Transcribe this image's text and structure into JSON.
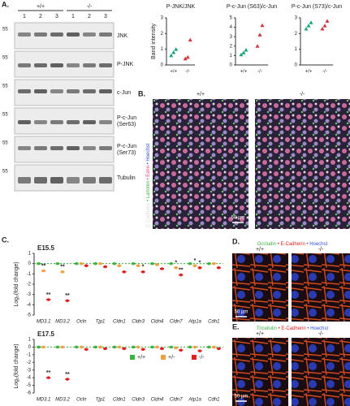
{
  "panel_a": {
    "label": "A.",
    "genotypes": [
      "+/+",
      "-/-"
    ],
    "lanes": [
      "1",
      "2",
      "3",
      "1",
      "2",
      "3"
    ],
    "marker": "55",
    "blots": [
      [
        "JNK"
      ],
      [
        "P-JNK"
      ],
      [
        "c-Jun"
      ],
      [
        "P-c-Jun",
        "(Ser63)"
      ],
      [
        "P-c-Jun",
        "(Ser73)"
      ],
      [
        "Tubulin"
      ]
    ]
  },
  "panel_b": {
    "label": "B.",
    "genotypes": [
      "+/+",
      "-/-"
    ],
    "stain": [
      "E-Cadherin",
      "Laminin",
      "Ezrin",
      "Hoechst"
    ],
    "scale": "50 µm"
  },
  "panel_c": {
    "label": "C."
  },
  "panel_d": {
    "label": "D.",
    "stain": [
      "Occludin",
      "E-Cadherin",
      "Hoechst"
    ],
    "genotypes": [
      "+/+",
      "-/-"
    ],
    "scale": "50 µm"
  },
  "panel_e": {
    "label": "E.",
    "stain": [
      "Tricellulin",
      "E-Cadherin",
      "Hoechst"
    ],
    "genotypes": [
      "+/+",
      "-/-"
    ],
    "scale": "50 µm"
  },
  "chart_data": [
    {
      "type": "dot",
      "title": "P-JNK/JNK",
      "ylabel": "Band intensity",
      "categories": [
        "+/+",
        "-/-"
      ],
      "colors": [
        "#1aa37a",
        "#d1323a"
      ],
      "values": [
        [
          0.6,
          0.8,
          1.0
        ],
        [
          0.4,
          0.5,
          1.6
        ]
      ],
      "ylim": [
        0,
        3
      ],
      "yticks": [
        0,
        1,
        2,
        3
      ]
    },
    {
      "type": "dot",
      "title": "P-c-Jun (S63)/c-Jun",
      "categories": [
        "+/+",
        "-/-"
      ],
      "colors": [
        "#1aa37a",
        "#d1323a"
      ],
      "values": [
        [
          1.1,
          1.3,
          1.6
        ],
        [
          2.0,
          3.2,
          4.2
        ]
      ],
      "ylim": [
        0,
        5
      ],
      "yticks": [
        0,
        1,
        2,
        3,
        4,
        5
      ]
    },
    {
      "type": "dot",
      "title": "P-c-Jun (S73)/c-Jun",
      "categories": [
        "+/+",
        "-/-"
      ],
      "colors": [
        "#1aa37a",
        "#d1323a"
      ],
      "values": [
        [
          2.3,
          2.5,
          2.7
        ],
        [
          2.3,
          2.5,
          2.8
        ]
      ],
      "ylim": [
        0,
        3
      ],
      "yticks": [
        0,
        1,
        2,
        3
      ]
    },
    {
      "type": "genes",
      "title": "E15.5",
      "ylabel": "Log₂(fold change)",
      "categories": [
        "MD3.1",
        "MD3.2",
        "Ocln",
        "Tjp1",
        "Cldn1",
        "Cldn3",
        "Cldn4",
        "Cldn7",
        "Atp1a",
        "Cdh1"
      ],
      "series": [
        {
          "name": "+/+",
          "color": "#3cb043",
          "values": [
            0,
            0,
            0,
            0,
            0,
            0,
            0,
            0,
            0,
            0
          ]
        },
        {
          "name": "+/-",
          "color": "#f0a040",
          "values": [
            -0.7,
            -0.8,
            0,
            0,
            -0.2,
            -0.2,
            -0.1,
            -0.4,
            -0.2,
            0
          ],
          "stars": [
            "**",
            "**",
            null,
            null,
            null,
            null,
            null,
            "*",
            "*",
            null
          ]
        },
        {
          "name": "-/-",
          "color": "#e02020",
          "values": [
            -3.5,
            -3.6,
            -0.2,
            -0.3,
            -0.8,
            -0.8,
            -0.5,
            -1.1,
            -0.4,
            -0.4
          ],
          "stars": [
            "**",
            "**",
            null,
            null,
            null,
            "*",
            null,
            "**",
            "*",
            null
          ]
        }
      ],
      "ylim": [
        -5,
        1
      ],
      "yticks": [
        1,
        0,
        -1,
        -2,
        -3,
        -4,
        -5
      ]
    },
    {
      "type": "genes",
      "title": "E17.5",
      "ylabel": "Log₂(fold change)",
      "categories": [
        "MD3.1",
        "MD3.2",
        "Ocln",
        "Tjp1",
        "Cldn1",
        "Cldn3",
        "Cldn4",
        "Cldn7",
        "Atp1a",
        "Cdh1"
      ],
      "series": [
        {
          "name": "+/+",
          "color": "#3cb043",
          "values": [
            0,
            0,
            0,
            0,
            0,
            0,
            0,
            0,
            0,
            0
          ]
        },
        {
          "name": "+/-",
          "color": "#f0a040",
          "values": [
            0,
            0,
            0,
            0,
            0,
            0,
            0,
            -0.1,
            0,
            0
          ]
        },
        {
          "name": "-/-",
          "color": "#e02020",
          "values": [
            -4,
            -4.2,
            -0.3,
            -0.2,
            -0.2,
            -0.3,
            -0.2,
            -0.4,
            -0.5,
            -0.2
          ],
          "stars": [
            "**",
            "**",
            null,
            null,
            null,
            null,
            null,
            null,
            null,
            null
          ]
        }
      ],
      "ylim": [
        -6,
        1
      ],
      "yticks": [
        1,
        0,
        -1,
        -2,
        -3,
        -4,
        -5,
        -6
      ],
      "legend": true
    }
  ]
}
